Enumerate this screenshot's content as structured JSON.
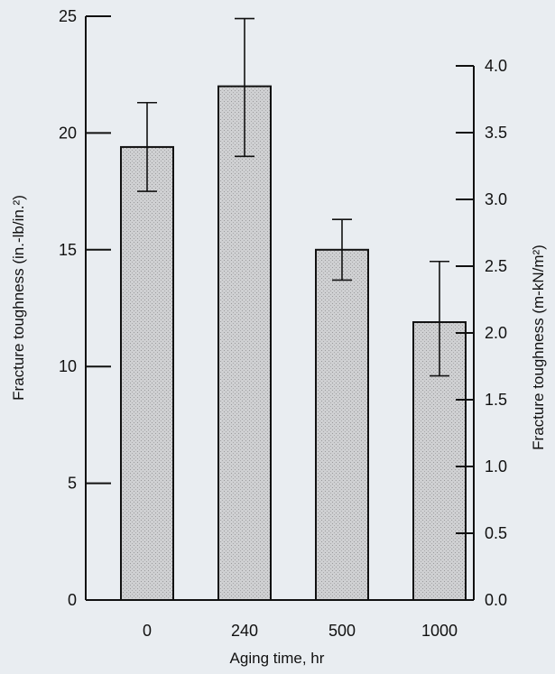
{
  "chart_data": {
    "type": "bar",
    "categories": [
      "0",
      "240",
      "500",
      "1000"
    ],
    "values": [
      19.4,
      22.0,
      15.0,
      11.9
    ],
    "error_bars": [
      {
        "low": 17.5,
        "high": 21.3
      },
      {
        "low": 19.0,
        "high": 24.9
      },
      {
        "low": 13.7,
        "high": 16.3
      },
      {
        "low": 9.6,
        "high": 14.5
      }
    ],
    "xlabel": "Aging time, hr",
    "ylabel": "Fracture toughness (in.-lb/in.²)",
    "ylim": [
      0,
      25
    ],
    "yticks": [
      "0",
      "5",
      "10",
      "15",
      "20",
      "25"
    ],
    "y2label": "Fracture toughness (m-kN/m²)",
    "y2lim": [
      0,
      4.0
    ],
    "y2_visible_max": 4.0,
    "y2ticks": [
      "0.0",
      "0.5",
      "1.0",
      "1.5",
      "2.0",
      "2.5",
      "3.0",
      "3.5",
      "4.0"
    ],
    "grid": false,
    "colors": {
      "background": "#e9edf1",
      "bar_fill": "#c9c9cb",
      "bar_stroke": "#111111",
      "axis": "#111111"
    }
  }
}
